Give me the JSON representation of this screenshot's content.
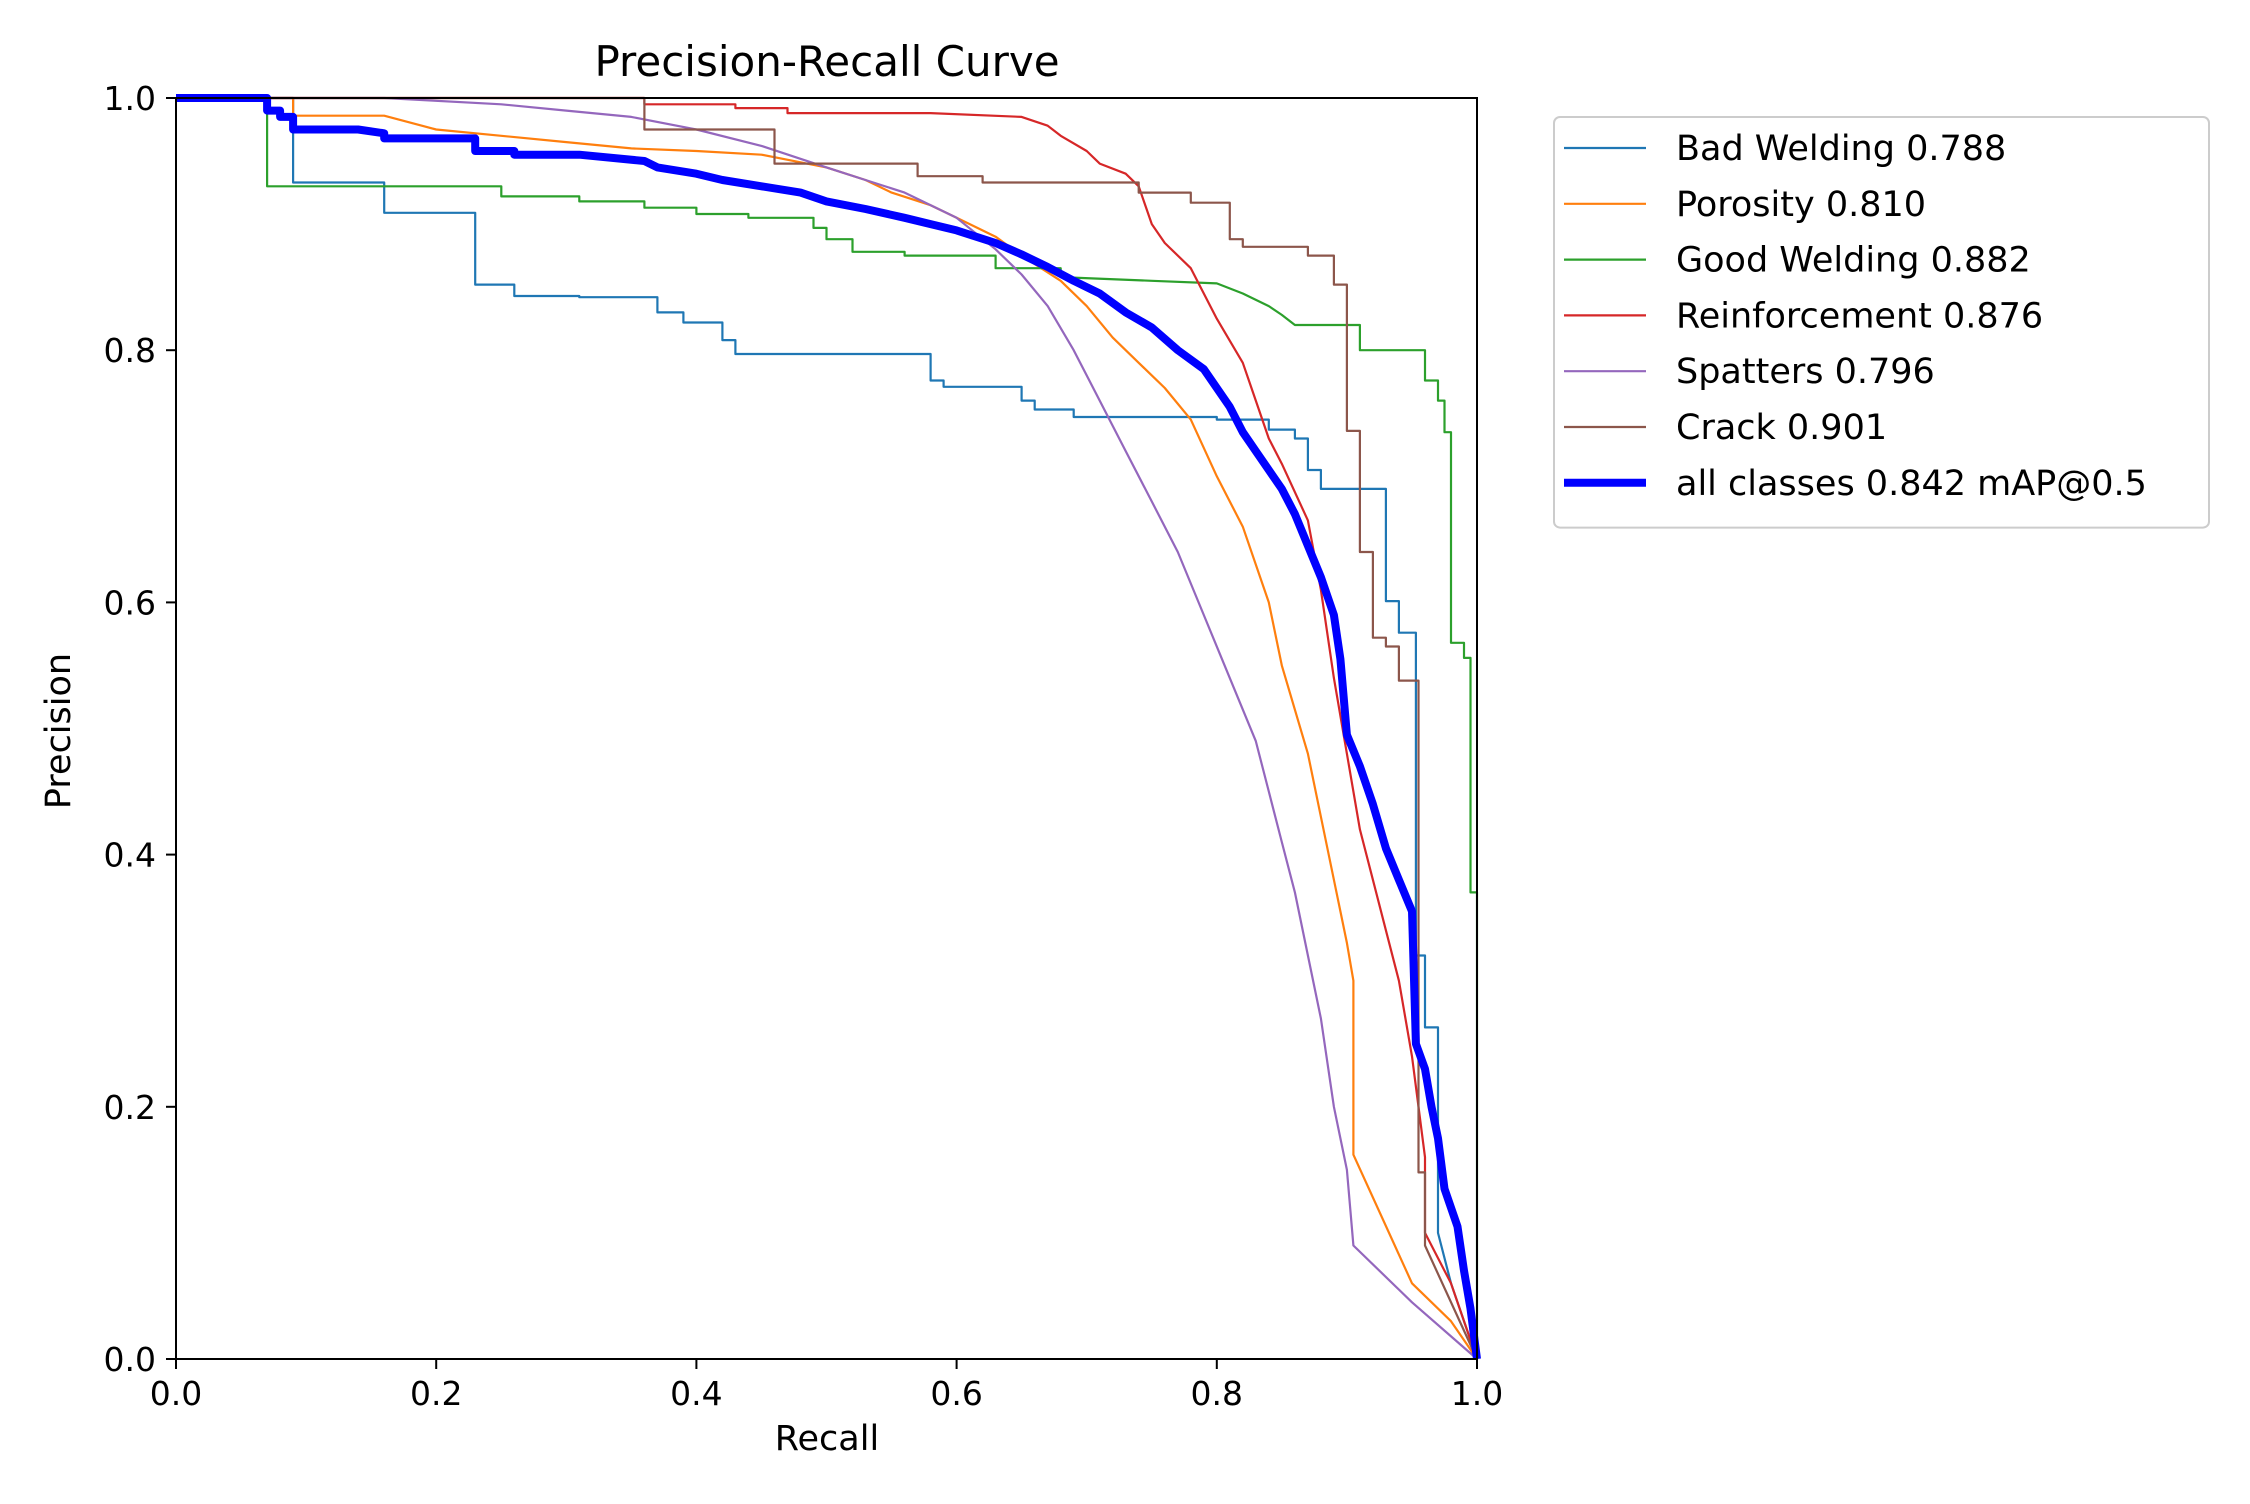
{
  "chart_data": {
    "type": "line",
    "title": "Precision-Recall Curve",
    "xlabel": "Recall",
    "ylabel": "Precision",
    "xlim": [
      0,
      1
    ],
    "ylim": [
      0,
      1
    ],
    "x_ticks": [
      "0.0",
      "0.2",
      "0.4",
      "0.6",
      "0.8",
      "1.0"
    ],
    "y_ticks": [
      "0.0",
      "0.2",
      "0.4",
      "0.6",
      "0.8",
      "1.0"
    ],
    "grid": false,
    "legend_position": "outside-right-top",
    "series": [
      {
        "name": "Bad Welding 0.788",
        "color": "#1f77b4",
        "width": "thin",
        "points": [
          [
            0,
            1.0
          ],
          [
            0.09,
            1.0
          ],
          [
            0.09,
            0.933
          ],
          [
            0.16,
            0.933
          ],
          [
            0.16,
            0.909
          ],
          [
            0.23,
            0.909
          ],
          [
            0.23,
            0.852
          ],
          [
            0.26,
            0.852
          ],
          [
            0.26,
            0.843
          ],
          [
            0.31,
            0.843
          ],
          [
            0.31,
            0.842
          ],
          [
            0.37,
            0.842
          ],
          [
            0.37,
            0.83
          ],
          [
            0.39,
            0.83
          ],
          [
            0.39,
            0.822
          ],
          [
            0.42,
            0.822
          ],
          [
            0.42,
            0.808
          ],
          [
            0.43,
            0.808
          ],
          [
            0.43,
            0.797
          ],
          [
            0.58,
            0.797
          ],
          [
            0.58,
            0.776
          ],
          [
            0.59,
            0.776
          ],
          [
            0.59,
            0.771
          ],
          [
            0.65,
            0.771
          ],
          [
            0.65,
            0.76
          ],
          [
            0.66,
            0.76
          ],
          [
            0.66,
            0.753
          ],
          [
            0.69,
            0.753
          ],
          [
            0.69,
            0.747
          ],
          [
            0.8,
            0.747
          ],
          [
            0.8,
            0.745
          ],
          [
            0.84,
            0.745
          ],
          [
            0.84,
            0.737
          ],
          [
            0.86,
            0.737
          ],
          [
            0.86,
            0.73
          ],
          [
            0.87,
            0.73
          ],
          [
            0.87,
            0.705
          ],
          [
            0.88,
            0.705
          ],
          [
            0.88,
            0.69
          ],
          [
            0.93,
            0.69
          ],
          [
            0.93,
            0.601
          ],
          [
            0.94,
            0.601
          ],
          [
            0.94,
            0.576
          ],
          [
            0.953,
            0.576
          ],
          [
            0.953,
            0.32
          ],
          [
            0.96,
            0.32
          ],
          [
            0.96,
            0.263
          ],
          [
            0.97,
            0.263
          ],
          [
            0.97,
            0.1
          ],
          [
            0.98,
            0.06
          ],
          [
            1.0,
            0.0
          ]
        ]
      },
      {
        "name": "Porosity 0.810",
        "color": "#ff7f0e",
        "width": "thin",
        "points": [
          [
            0,
            1.0
          ],
          [
            0.09,
            1.0
          ],
          [
            0.09,
            0.986
          ],
          [
            0.16,
            0.986
          ],
          [
            0.2,
            0.975
          ],
          [
            0.25,
            0.97
          ],
          [
            0.3,
            0.965
          ],
          [
            0.35,
            0.96
          ],
          [
            0.4,
            0.958
          ],
          [
            0.45,
            0.955
          ],
          [
            0.5,
            0.945
          ],
          [
            0.53,
            0.935
          ],
          [
            0.55,
            0.925
          ],
          [
            0.58,
            0.915
          ],
          [
            0.6,
            0.905
          ],
          [
            0.63,
            0.89
          ],
          [
            0.65,
            0.875
          ],
          [
            0.68,
            0.855
          ],
          [
            0.7,
            0.835
          ],
          [
            0.72,
            0.81
          ],
          [
            0.74,
            0.79
          ],
          [
            0.76,
            0.77
          ],
          [
            0.78,
            0.745
          ],
          [
            0.8,
            0.7
          ],
          [
            0.82,
            0.66
          ],
          [
            0.84,
            0.6
          ],
          [
            0.85,
            0.55
          ],
          [
            0.87,
            0.48
          ],
          [
            0.88,
            0.43
          ],
          [
            0.89,
            0.38
          ],
          [
            0.9,
            0.33
          ],
          [
            0.905,
            0.3
          ],
          [
            0.905,
            0.162
          ],
          [
            0.95,
            0.06
          ],
          [
            0.98,
            0.03
          ],
          [
            1.0,
            0.0
          ]
        ]
      },
      {
        "name": "Good Welding 0.882",
        "color": "#2ca02c",
        "width": "thin",
        "points": [
          [
            0,
            1.0
          ],
          [
            0.07,
            1.0
          ],
          [
            0.07,
            0.93
          ],
          [
            0.16,
            0.93
          ],
          [
            0.25,
            0.93
          ],
          [
            0.25,
            0.922
          ],
          [
            0.31,
            0.922
          ],
          [
            0.31,
            0.918
          ],
          [
            0.36,
            0.918
          ],
          [
            0.36,
            0.913
          ],
          [
            0.4,
            0.913
          ],
          [
            0.4,
            0.908
          ],
          [
            0.44,
            0.908
          ],
          [
            0.44,
            0.905
          ],
          [
            0.49,
            0.905
          ],
          [
            0.49,
            0.897
          ],
          [
            0.5,
            0.897
          ],
          [
            0.5,
            0.888
          ],
          [
            0.52,
            0.888
          ],
          [
            0.52,
            0.878
          ],
          [
            0.56,
            0.878
          ],
          [
            0.56,
            0.875
          ],
          [
            0.63,
            0.875
          ],
          [
            0.63,
            0.865
          ],
          [
            0.68,
            0.865
          ],
          [
            0.68,
            0.858
          ],
          [
            0.75,
            0.855
          ],
          [
            0.8,
            0.853
          ],
          [
            0.82,
            0.845
          ],
          [
            0.84,
            0.835
          ],
          [
            0.85,
            0.828
          ],
          [
            0.86,
            0.82
          ],
          [
            0.91,
            0.82
          ],
          [
            0.91,
            0.8
          ],
          [
            0.96,
            0.8
          ],
          [
            0.96,
            0.776
          ],
          [
            0.97,
            0.776
          ],
          [
            0.97,
            0.76
          ],
          [
            0.975,
            0.76
          ],
          [
            0.975,
            0.735
          ],
          [
            0.98,
            0.735
          ],
          [
            0.98,
            0.568
          ],
          [
            0.99,
            0.568
          ],
          [
            0.99,
            0.556
          ],
          [
            0.995,
            0.556
          ],
          [
            0.995,
            0.37
          ],
          [
            1.0,
            0.37
          ],
          [
            1.0,
            0.0
          ]
        ]
      },
      {
        "name": "Reinforcement 0.876",
        "color": "#d62728",
        "width": "thin",
        "points": [
          [
            0,
            1.0
          ],
          [
            0.36,
            1.0
          ],
          [
            0.36,
            0.995
          ],
          [
            0.43,
            0.995
          ],
          [
            0.43,
            0.992
          ],
          [
            0.47,
            0.992
          ],
          [
            0.47,
            0.988
          ],
          [
            0.58,
            0.988
          ],
          [
            0.65,
            0.985
          ],
          [
            0.67,
            0.978
          ],
          [
            0.68,
            0.97
          ],
          [
            0.7,
            0.958
          ],
          [
            0.71,
            0.948
          ],
          [
            0.73,
            0.94
          ],
          [
            0.74,
            0.93
          ],
          [
            0.75,
            0.9
          ],
          [
            0.76,
            0.885
          ],
          [
            0.78,
            0.865
          ],
          [
            0.79,
            0.845
          ],
          [
            0.8,
            0.825
          ],
          [
            0.82,
            0.79
          ],
          [
            0.83,
            0.76
          ],
          [
            0.84,
            0.73
          ],
          [
            0.85,
            0.71
          ],
          [
            0.87,
            0.665
          ],
          [
            0.88,
            0.61
          ],
          [
            0.89,
            0.54
          ],
          [
            0.9,
            0.48
          ],
          [
            0.91,
            0.42
          ],
          [
            0.92,
            0.38
          ],
          [
            0.93,
            0.34
          ],
          [
            0.94,
            0.3
          ],
          [
            0.95,
            0.24
          ],
          [
            0.96,
            0.16
          ],
          [
            0.96,
            0.1
          ],
          [
            0.98,
            0.06
          ],
          [
            1.0,
            0.0
          ]
        ]
      },
      {
        "name": "Spatters 0.796",
        "color": "#9467bd",
        "width": "thin",
        "points": [
          [
            0,
            1.0
          ],
          [
            0.16,
            1.0
          ],
          [
            0.25,
            0.995
          ],
          [
            0.3,
            0.99
          ],
          [
            0.35,
            0.985
          ],
          [
            0.4,
            0.975
          ],
          [
            0.45,
            0.962
          ],
          [
            0.5,
            0.945
          ],
          [
            0.53,
            0.935
          ],
          [
            0.56,
            0.925
          ],
          [
            0.6,
            0.905
          ],
          [
            0.63,
            0.88
          ],
          [
            0.65,
            0.86
          ],
          [
            0.67,
            0.835
          ],
          [
            0.69,
            0.8
          ],
          [
            0.71,
            0.76
          ],
          [
            0.73,
            0.72
          ],
          [
            0.75,
            0.68
          ],
          [
            0.77,
            0.64
          ],
          [
            0.79,
            0.59
          ],
          [
            0.81,
            0.54
          ],
          [
            0.83,
            0.49
          ],
          [
            0.84,
            0.45
          ],
          [
            0.85,
            0.41
          ],
          [
            0.86,
            0.37
          ],
          [
            0.87,
            0.32
          ],
          [
            0.88,
            0.27
          ],
          [
            0.89,
            0.2
          ],
          [
            0.9,
            0.15
          ],
          [
            0.905,
            0.09
          ],
          [
            0.95,
            0.045
          ],
          [
            1.0,
            0.0
          ]
        ]
      },
      {
        "name": "Crack 0.901",
        "color": "#8c564b",
        "width": "thin",
        "points": [
          [
            0,
            1.0
          ],
          [
            0.36,
            1.0
          ],
          [
            0.36,
            0.975
          ],
          [
            0.46,
            0.975
          ],
          [
            0.46,
            0.948
          ],
          [
            0.57,
            0.948
          ],
          [
            0.57,
            0.938
          ],
          [
            0.62,
            0.938
          ],
          [
            0.62,
            0.933
          ],
          [
            0.74,
            0.933
          ],
          [
            0.74,
            0.925
          ],
          [
            0.78,
            0.925
          ],
          [
            0.78,
            0.917
          ],
          [
            0.81,
            0.917
          ],
          [
            0.81,
            0.888
          ],
          [
            0.82,
            0.888
          ],
          [
            0.82,
            0.882
          ],
          [
            0.87,
            0.882
          ],
          [
            0.87,
            0.875
          ],
          [
            0.89,
            0.875
          ],
          [
            0.89,
            0.852
          ],
          [
            0.9,
            0.852
          ],
          [
            0.9,
            0.736
          ],
          [
            0.91,
            0.736
          ],
          [
            0.91,
            0.64
          ],
          [
            0.92,
            0.64
          ],
          [
            0.92,
            0.572
          ],
          [
            0.93,
            0.572
          ],
          [
            0.93,
            0.565
          ],
          [
            0.94,
            0.565
          ],
          [
            0.94,
            0.538
          ],
          [
            0.955,
            0.538
          ],
          [
            0.955,
            0.148
          ],
          [
            0.96,
            0.148
          ],
          [
            0.96,
            0.09
          ],
          [
            1.0,
            0.0
          ]
        ]
      },
      {
        "name": "all classes 0.842 mAP@0.5",
        "color": "#0000ff",
        "width": "thick",
        "points": [
          [
            0,
            1.0
          ],
          [
            0.07,
            1.0
          ],
          [
            0.07,
            0.99
          ],
          [
            0.08,
            0.99
          ],
          [
            0.08,
            0.985
          ],
          [
            0.09,
            0.985
          ],
          [
            0.09,
            0.975
          ],
          [
            0.14,
            0.975
          ],
          [
            0.16,
            0.972
          ],
          [
            0.16,
            0.968
          ],
          [
            0.23,
            0.968
          ],
          [
            0.23,
            0.958
          ],
          [
            0.26,
            0.958
          ],
          [
            0.26,
            0.955
          ],
          [
            0.31,
            0.955
          ],
          [
            0.36,
            0.95
          ],
          [
            0.37,
            0.945
          ],
          [
            0.4,
            0.94
          ],
          [
            0.42,
            0.935
          ],
          [
            0.45,
            0.93
          ],
          [
            0.48,
            0.925
          ],
          [
            0.5,
            0.918
          ],
          [
            0.53,
            0.912
          ],
          [
            0.56,
            0.905
          ],
          [
            0.58,
            0.9
          ],
          [
            0.6,
            0.895
          ],
          [
            0.63,
            0.885
          ],
          [
            0.65,
            0.876
          ],
          [
            0.67,
            0.866
          ],
          [
            0.69,
            0.855
          ],
          [
            0.71,
            0.845
          ],
          [
            0.73,
            0.83
          ],
          [
            0.75,
            0.818
          ],
          [
            0.77,
            0.8
          ],
          [
            0.79,
            0.785
          ],
          [
            0.8,
            0.77
          ],
          [
            0.81,
            0.755
          ],
          [
            0.82,
            0.735
          ],
          [
            0.83,
            0.72
          ],
          [
            0.84,
            0.705
          ],
          [
            0.85,
            0.69
          ],
          [
            0.86,
            0.67
          ],
          [
            0.87,
            0.645
          ],
          [
            0.88,
            0.62
          ],
          [
            0.89,
            0.59
          ],
          [
            0.895,
            0.555
          ],
          [
            0.9,
            0.495
          ],
          [
            0.91,
            0.47
          ],
          [
            0.92,
            0.44
          ],
          [
            0.93,
            0.405
          ],
          [
            0.94,
            0.38
          ],
          [
            0.95,
            0.355
          ],
          [
            0.953,
            0.25
          ],
          [
            0.96,
            0.23
          ],
          [
            0.965,
            0.2
          ],
          [
            0.97,
            0.175
          ],
          [
            0.975,
            0.135
          ],
          [
            0.98,
            0.12
          ],
          [
            0.985,
            0.105
          ],
          [
            0.99,
            0.07
          ],
          [
            0.995,
            0.04
          ],
          [
            1.0,
            0.0
          ]
        ]
      }
    ]
  }
}
